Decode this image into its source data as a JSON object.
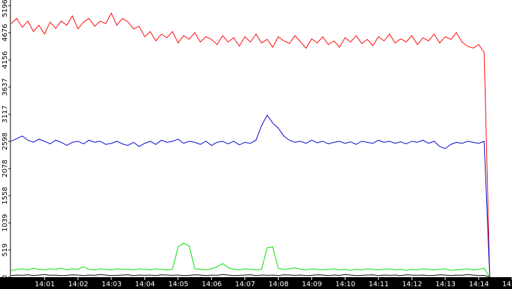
{
  "chart_data": {
    "type": "line",
    "xlim": [
      50400,
      51300
    ],
    "xticks": [
      {
        "value": 50460,
        "label": "14:01"
      },
      {
        "value": 50520,
        "label": "14:02"
      },
      {
        "value": 50580,
        "label": "14:03"
      },
      {
        "value": 50640,
        "label": "14:04"
      },
      {
        "value": 50700,
        "label": "14:05"
      },
      {
        "value": 50760,
        "label": "14:06"
      },
      {
        "value": 50820,
        "label": "14:07"
      },
      {
        "value": 50880,
        "label": "14:08"
      },
      {
        "value": 50940,
        "label": "14:09"
      },
      {
        "value": 51000,
        "label": "14:10"
      },
      {
        "value": 51060,
        "label": "14:11"
      },
      {
        "value": 51120,
        "label": "14:12"
      },
      {
        "value": 51180,
        "label": "14:13"
      },
      {
        "value": 51240,
        "label": "14:14"
      },
      {
        "value": 51300,
        "label": "14"
      }
    ],
    "ylim": [
      0,
      5196
    ],
    "yticks": [
      0,
      519,
      1039,
      1558,
      2078,
      2598,
      3117,
      3637,
      4156,
      4676,
      5196
    ],
    "x": [
      50400,
      50410,
      50420,
      50430,
      50440,
      50450,
      50460,
      50470,
      50480,
      50490,
      50500,
      50510,
      50520,
      50530,
      50540,
      50550,
      50560,
      50570,
      50580,
      50590,
      50600,
      50610,
      50620,
      50630,
      50640,
      50650,
      50660,
      50670,
      50680,
      50690,
      50700,
      50710,
      50720,
      50730,
      50740,
      50750,
      50760,
      50770,
      50780,
      50790,
      50800,
      50810,
      50820,
      50830,
      50840,
      50850,
      50860,
      50870,
      50880,
      50890,
      50900,
      50910,
      50920,
      50930,
      50940,
      50950,
      50960,
      50970,
      50980,
      50990,
      51000,
      51010,
      51020,
      51030,
      51040,
      51050,
      51060,
      51070,
      51080,
      51090,
      51100,
      51110,
      51120,
      51130,
      51140,
      51150,
      51160,
      51170,
      51180,
      51190,
      51200,
      51210,
      51220,
      51230,
      51240,
      51250,
      51260
    ],
    "series": [
      {
        "color": "#ff0000",
        "values": [
          4850,
          4950,
          4780,
          4900,
          4700,
          4820,
          4650,
          4880,
          4760,
          4900,
          4820,
          5000,
          4750,
          4880,
          4950,
          4800,
          4900,
          4850,
          5050,
          4820,
          4950,
          4880,
          4750,
          4800,
          4600,
          4700,
          4520,
          4650,
          4580,
          4700,
          4480,
          4620,
          4550,
          4680,
          4500,
          4600,
          4550,
          4450,
          4620,
          4500,
          4580,
          4420,
          4600,
          4500,
          4650,
          4480,
          4550,
          4400,
          4600,
          4520,
          4470,
          4620,
          4500,
          4380,
          4560,
          4480,
          4600,
          4450,
          4520,
          4400,
          4580,
          4500,
          4620,
          4470,
          4550,
          4430,
          4600,
          4520,
          4650,
          4480,
          4560,
          4500,
          4620,
          4450,
          4580,
          4520,
          4650,
          4480,
          4600,
          4550,
          4680,
          4500,
          4420,
          4380,
          4450,
          4300,
          0
        ]
      },
      {
        "color": "#0000cc",
        "values": [
          2600,
          2650,
          2700,
          2620,
          2580,
          2640,
          2600,
          2550,
          2620,
          2580,
          2520,
          2580,
          2600,
          2550,
          2620,
          2580,
          2600,
          2540,
          2560,
          2600,
          2550,
          2520,
          2580,
          2500,
          2560,
          2600,
          2540,
          2620,
          2580,
          2600,
          2640,
          2560,
          2600,
          2580,
          2540,
          2600,
          2520,
          2580,
          2600,
          2550,
          2600,
          2530,
          2580,
          2560,
          2620,
          2900,
          3100,
          2950,
          2850,
          2700,
          2620,
          2580,
          2600,
          2560,
          2620,
          2570,
          2600,
          2550,
          2580,
          2600,
          2560,
          2590,
          2540,
          2600,
          2580,
          2560,
          2620,
          2580,
          2600,
          2560,
          2590,
          2550,
          2600,
          2580,
          2620,
          2560,
          2600,
          2500,
          2460,
          2540,
          2580,
          2560,
          2600,
          2580,
          2560,
          2600,
          0
        ]
      },
      {
        "color": "#00dd00",
        "values": [
          130,
          150,
          160,
          140,
          170,
          150,
          140,
          160,
          150,
          170,
          140,
          160,
          150,
          200,
          150,
          140,
          160,
          150,
          140,
          160,
          150,
          150,
          140,
          160,
          150,
          140,
          160,
          150,
          140,
          150,
          580,
          650,
          600,
          160,
          150,
          140,
          160,
          200,
          260,
          180,
          150,
          140,
          160,
          150,
          140,
          150,
          560,
          580,
          170,
          150,
          160,
          180,
          150,
          140,
          160,
          150,
          140,
          150,
          160,
          140,
          150,
          130,
          150,
          140,
          160,
          150,
          140,
          150,
          160,
          140,
          150,
          130,
          150,
          140,
          160,
          150,
          140,
          150,
          160,
          130,
          140,
          150,
          160,
          140,
          150,
          170,
          0
        ]
      },
      {
        "color": "#000000",
        "values": [
          30,
          40,
          35,
          45,
          30,
          40,
          50,
          35,
          40,
          30,
          35,
          45,
          40,
          30,
          40,
          35,
          50,
          40,
          30,
          35,
          40,
          45,
          30,
          40,
          35,
          40,
          30,
          45,
          40,
          35,
          40,
          30,
          35,
          45,
          40,
          30,
          40,
          35,
          50,
          40,
          30,
          35,
          40,
          45,
          30,
          40,
          35,
          40,
          30,
          45,
          40,
          35,
          40,
          30,
          35,
          45,
          40,
          30,
          40,
          35,
          50,
          40,
          30,
          35,
          40,
          45,
          30,
          40,
          35,
          40,
          30,
          45,
          40,
          35,
          40,
          30,
          35,
          45,
          40,
          30,
          40,
          35,
          50,
          40,
          30,
          35,
          0
        ]
      }
    ]
  }
}
